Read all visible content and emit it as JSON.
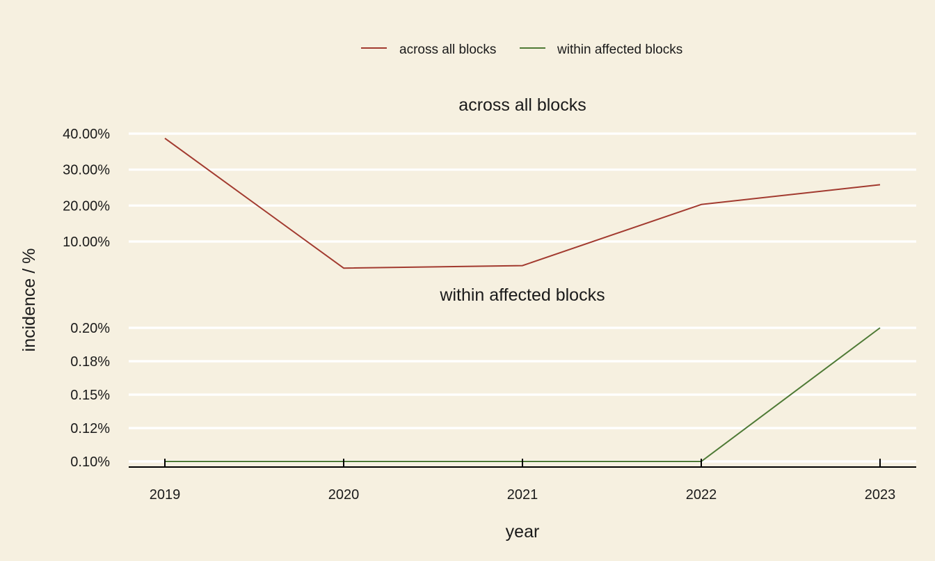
{
  "chart_data": {
    "type": "line",
    "legend": {
      "placement": "top",
      "entries": [
        {
          "label": "across all blocks",
          "color": "#A23A2F"
        },
        {
          "label": "within affected blocks",
          "color": "#4E7A35"
        }
      ]
    },
    "xlabel": "year",
    "ylabel": "incidence / %",
    "x": [
      2019,
      2020,
      2021,
      2022,
      2023
    ],
    "x_tick_labels": [
      "2019",
      "2020",
      "2021",
      "2022",
      "2023"
    ],
    "grid": true,
    "panels": [
      {
        "title": "across all blocks",
        "series_name": "across all blocks",
        "color": "#A23A2F",
        "values": [
          38.7,
          2.6,
          3.3,
          20.3,
          25.8
        ],
        "ylim": [
          0,
          40
        ],
        "y_ticks": [
          10,
          20,
          30,
          40
        ],
        "y_tick_labels": [
          "10.00%",
          "20.00%",
          "30.00%",
          "40.00%"
        ]
      },
      {
        "title": "within affected blocks",
        "series_name": "within affected blocks",
        "color": "#4E7A35",
        "values": [
          0.1,
          0.1,
          0.1,
          0.1,
          0.2
        ],
        "ylim": [
          0.1,
          0.2
        ],
        "y_ticks": [
          0.1,
          0.125,
          0.15,
          0.175,
          0.2
        ],
        "y_tick_labels": [
          "0.10%",
          "0.12%",
          "0.15%",
          "0.18%",
          "0.20%"
        ]
      }
    ]
  }
}
